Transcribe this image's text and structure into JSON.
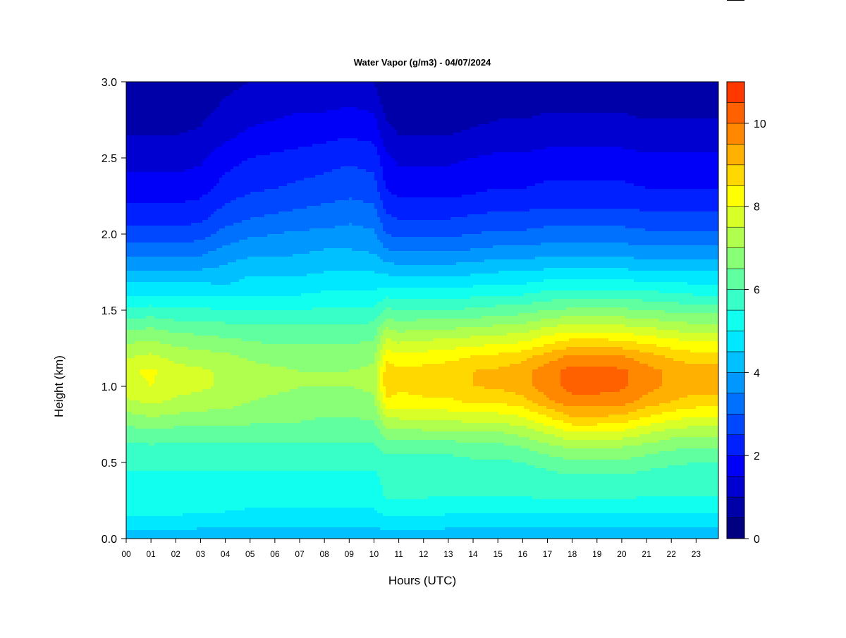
{
  "chart_data": {
    "type": "heatmap",
    "title": "Water Vapor (g/m3) - 04/07/2024",
    "xlabel": "Hours (UTC)",
    "ylabel": "Height (km)",
    "x_ticks": [
      "00",
      "01",
      "02",
      "03",
      "04",
      "05",
      "06",
      "07",
      "08",
      "09",
      "10",
      "11",
      "12",
      "13",
      "14",
      "15",
      "16",
      "17",
      "18",
      "19",
      "20",
      "21",
      "22",
      "23"
    ],
    "x_range": [
      0,
      23.9
    ],
    "y_ticks": [
      "0.0",
      "0.5",
      "1.0",
      "1.5",
      "2.0",
      "2.5",
      "3.0"
    ],
    "y_range": [
      0,
      3.0
    ],
    "colorbar": {
      "range": [
        0,
        11
      ],
      "ticks": [
        "0",
        "2",
        "4",
        "6",
        "8",
        "10"
      ],
      "step": 0.5,
      "colors": [
        "#000080",
        "#0000a8",
        "#0000d0",
        "#0000f8",
        "#0020ff",
        "#0048ff",
        "#0070ff",
        "#0098ff",
        "#00c0ff",
        "#00e8ff",
        "#10ffef",
        "#38ffc7",
        "#60ff9f",
        "#88ff77",
        "#b0ff4f",
        "#d8ff27",
        "#ffff00",
        "#ffd800",
        "#ffb000",
        "#ff8800",
        "#ff6000",
        "#ff3800",
        "#ff1000",
        "#e80000",
        "#c00000",
        "#980000"
      ]
    },
    "profile": {
      "heights_km": [
        0.0,
        0.1,
        0.2,
        0.3,
        0.4,
        0.5,
        0.6,
        0.7,
        0.8,
        0.9,
        1.0,
        1.1,
        1.2,
        1.3,
        1.4,
        1.5,
        1.6,
        1.7,
        1.8,
        1.9,
        2.0,
        2.1,
        2.2,
        2.3,
        2.4,
        2.5,
        2.6,
        2.7,
        2.8,
        2.9,
        3.0
      ],
      "times_utc": [
        0,
        1,
        2,
        3,
        4,
        5,
        6,
        7,
        8,
        9,
        10,
        10.5,
        11,
        12,
        13,
        14,
        15,
        16,
        17,
        18,
        19,
        20,
        21,
        22,
        23,
        23.9
      ],
      "values_g_m3": [
        [
          4.2,
          4.8,
          5.2,
          5.5,
          5.4,
          5.6,
          5.9,
          6.3,
          6.8,
          7.4,
          7.8,
          7.9,
          7.4,
          6.9,
          6.3,
          5.6,
          5.0,
          4.4,
          3.8,
          3.2,
          2.7,
          2.3,
          2.0,
          1.7,
          1.5,
          1.3,
          1.1,
          0.9,
          0.8,
          0.7,
          0.6
        ],
        [
          4.2,
          4.8,
          5.2,
          5.5,
          5.4,
          5.6,
          5.9,
          6.4,
          7.0,
          7.6,
          8.0,
          8.1,
          7.6,
          7.0,
          6.4,
          5.7,
          5.0,
          4.4,
          3.8,
          3.2,
          2.7,
          2.3,
          2.0,
          1.7,
          1.5,
          1.3,
          1.1,
          0.9,
          0.8,
          0.7,
          0.6
        ],
        [
          4.2,
          4.8,
          5.2,
          5.5,
          5.4,
          5.6,
          5.9,
          6.3,
          6.9,
          7.4,
          7.7,
          7.7,
          7.3,
          6.8,
          6.2,
          5.6,
          5.0,
          4.4,
          3.8,
          3.2,
          2.7,
          2.3,
          2.0,
          1.7,
          1.5,
          1.3,
          1.1,
          0.9,
          0.8,
          0.7,
          0.6
        ],
        [
          4.1,
          4.7,
          5.1,
          5.4,
          5.4,
          5.6,
          5.9,
          6.3,
          6.8,
          7.3,
          7.6,
          7.6,
          7.2,
          6.7,
          6.2,
          5.6,
          5.0,
          4.4,
          3.8,
          3.3,
          2.8,
          2.4,
          2.1,
          1.8,
          1.6,
          1.4,
          1.2,
          1.0,
          0.9,
          0.8,
          0.7
        ],
        [
          4.1,
          4.7,
          5.1,
          5.4,
          5.4,
          5.6,
          5.9,
          6.3,
          6.8,
          7.2,
          7.4,
          7.4,
          7.1,
          6.6,
          6.1,
          5.5,
          4.9,
          4.3,
          4.0,
          3.6,
          3.2,
          2.8,
          2.5,
          2.2,
          2.0,
          1.8,
          1.5,
          1.3,
          1.1,
          1.0,
          0.9
        ],
        [
          4.1,
          4.6,
          5.0,
          5.3,
          5.4,
          5.6,
          5.9,
          6.3,
          6.7,
          7.0,
          7.2,
          7.2,
          6.9,
          6.5,
          6.0,
          5.5,
          5.0,
          4.6,
          4.2,
          3.8,
          3.4,
          3.0,
          2.7,
          2.4,
          2.2,
          2.0,
          1.7,
          1.5,
          1.3,
          1.1,
          1.0
        ],
        [
          4.1,
          4.6,
          5.0,
          5.3,
          5.4,
          5.6,
          5.9,
          6.3,
          6.6,
          6.9,
          7.1,
          7.1,
          6.8,
          6.4,
          6.0,
          5.5,
          5.0,
          4.6,
          4.2,
          3.8,
          3.5,
          3.1,
          2.8,
          2.5,
          2.3,
          2.1,
          1.8,
          1.6,
          1.4,
          1.2,
          1.0
        ],
        [
          4.1,
          4.6,
          5.0,
          5.3,
          5.4,
          5.6,
          5.9,
          6.3,
          6.6,
          6.9,
          7.0,
          7.0,
          6.8,
          6.4,
          6.0,
          5.5,
          5.0,
          4.6,
          4.2,
          3.9,
          3.6,
          3.2,
          2.9,
          2.6,
          2.4,
          2.2,
          1.9,
          1.7,
          1.5,
          1.3,
          1.1
        ],
        [
          4.1,
          4.6,
          5.0,
          5.3,
          5.4,
          5.6,
          5.9,
          6.2,
          6.5,
          6.8,
          7.0,
          7.0,
          6.8,
          6.4,
          6.0,
          5.6,
          5.1,
          4.7,
          4.3,
          4.0,
          3.6,
          3.3,
          3.0,
          2.7,
          2.5,
          2.3,
          2.0,
          1.8,
          1.5,
          1.3,
          1.1
        ],
        [
          4.1,
          4.6,
          5.0,
          5.3,
          5.4,
          5.6,
          5.9,
          6.2,
          6.5,
          6.8,
          7.0,
          7.0,
          6.8,
          6.4,
          6.0,
          5.6,
          5.1,
          4.7,
          4.3,
          4.0,
          3.7,
          3.4,
          3.1,
          2.8,
          2.6,
          2.4,
          2.1,
          1.8,
          1.6,
          1.3,
          1.1
        ],
        [
          4.1,
          4.6,
          5.0,
          5.3,
          5.4,
          5.6,
          5.9,
          6.2,
          6.6,
          6.9,
          7.1,
          7.1,
          6.9,
          6.5,
          6.1,
          5.6,
          5.1,
          4.7,
          4.3,
          3.9,
          3.6,
          3.3,
          3.0,
          2.7,
          2.5,
          2.3,
          2.0,
          1.7,
          1.5,
          1.2,
          1.0
        ],
        [
          4.2,
          4.8,
          5.3,
          5.6,
          5.6,
          5.8,
          6.2,
          6.8,
          7.6,
          8.4,
          8.8,
          8.8,
          8.3,
          7.6,
          6.9,
          6.1,
          5.4,
          4.7,
          4.1,
          3.5,
          3.0,
          2.6,
          2.3,
          2.0,
          1.8,
          1.6,
          1.3,
          1.1,
          0.9,
          0.7,
          0.6
        ],
        [
          4.2,
          4.8,
          5.3,
          5.6,
          5.6,
          5.8,
          6.2,
          6.8,
          7.6,
          8.3,
          8.6,
          8.6,
          8.1,
          7.4,
          6.7,
          6.0,
          5.3,
          4.6,
          4.0,
          3.4,
          2.9,
          2.5,
          2.1,
          1.8,
          1.6,
          1.4,
          1.1,
          0.9,
          0.7,
          0.6,
          0.5
        ],
        [
          4.2,
          4.8,
          5.3,
          5.6,
          5.6,
          5.8,
          6.2,
          6.9,
          7.7,
          8.4,
          8.7,
          8.7,
          8.2,
          7.5,
          6.8,
          6.0,
          5.3,
          4.6,
          4.0,
          3.4,
          2.9,
          2.5,
          2.1,
          1.8,
          1.6,
          1.4,
          1.1,
          0.9,
          0.7,
          0.6,
          0.5
        ],
        [
          4.1,
          4.7,
          5.2,
          5.6,
          5.6,
          5.8,
          6.2,
          6.9,
          7.7,
          8.4,
          8.8,
          8.8,
          8.3,
          7.6,
          6.8,
          6.0,
          5.3,
          4.6,
          4.0,
          3.4,
          2.9,
          2.5,
          2.1,
          1.8,
          1.6,
          1.4,
          1.1,
          0.9,
          0.7,
          0.6,
          0.5
        ],
        [
          4.1,
          4.7,
          5.2,
          5.6,
          5.6,
          5.9,
          6.3,
          7.0,
          7.8,
          8.6,
          9.0,
          9.0,
          8.5,
          7.7,
          6.9,
          6.1,
          5.4,
          4.7,
          4.1,
          3.5,
          3.0,
          2.6,
          2.2,
          1.9,
          1.7,
          1.5,
          1.2,
          1.0,
          0.8,
          0.6,
          0.5
        ],
        [
          4.1,
          4.7,
          5.2,
          5.6,
          5.6,
          5.9,
          6.3,
          7.0,
          7.8,
          8.6,
          9.1,
          9.1,
          8.6,
          7.8,
          7.0,
          6.2,
          5.5,
          4.8,
          4.2,
          3.6,
          3.1,
          2.7,
          2.3,
          2.0,
          1.8,
          1.6,
          1.3,
          1.1,
          0.9,
          0.7,
          0.6
        ],
        [
          4.1,
          4.7,
          5.2,
          5.6,
          5.7,
          6.0,
          6.5,
          7.2,
          8.0,
          8.8,
          9.3,
          9.3,
          8.8,
          7.9,
          7.1,
          6.3,
          5.5,
          4.8,
          4.2,
          3.6,
          3.1,
          2.7,
          2.3,
          2.0,
          1.8,
          1.6,
          1.3,
          1.1,
          0.9,
          0.7,
          0.6
        ],
        [
          4.1,
          4.7,
          5.2,
          5.7,
          5.8,
          6.2,
          6.8,
          7.6,
          8.5,
          9.4,
          9.8,
          9.8,
          9.2,
          8.3,
          7.4,
          6.5,
          5.7,
          5.0,
          4.3,
          3.7,
          3.2,
          2.8,
          2.4,
          2.1,
          1.9,
          1.7,
          1.4,
          1.2,
          1.0,
          0.8,
          0.7
        ],
        [
          4.1,
          4.7,
          5.2,
          5.7,
          5.9,
          6.4,
          7.1,
          8.0,
          9.0,
          9.8,
          10.2,
          10.2,
          9.6,
          8.6,
          7.6,
          6.6,
          5.8,
          5.0,
          4.3,
          3.7,
          3.2,
          2.8,
          2.4,
          2.1,
          1.9,
          1.7,
          1.4,
          1.2,
          1.0,
          0.8,
          0.7
        ],
        [
          4.1,
          4.7,
          5.2,
          5.7,
          5.9,
          6.4,
          7.1,
          8.0,
          9.0,
          9.8,
          10.2,
          10.2,
          9.6,
          8.6,
          7.6,
          6.6,
          5.8,
          5.0,
          4.3,
          3.7,
          3.2,
          2.8,
          2.4,
          2.1,
          1.9,
          1.7,
          1.4,
          1.2,
          1.0,
          0.8,
          0.7
        ],
        [
          4.1,
          4.7,
          5.2,
          5.7,
          5.9,
          6.4,
          7.0,
          7.9,
          8.9,
          9.7,
          10.1,
          10.1,
          9.5,
          8.5,
          7.5,
          6.6,
          5.8,
          5.0,
          4.3,
          3.7,
          3.2,
          2.8,
          2.4,
          2.1,
          1.9,
          1.7,
          1.4,
          1.2,
          1.0,
          0.8,
          0.7
        ],
        [
          4.1,
          4.7,
          5.2,
          5.6,
          5.8,
          6.2,
          6.8,
          7.6,
          8.5,
          9.3,
          9.7,
          9.7,
          9.2,
          8.3,
          7.4,
          6.5,
          5.7,
          4.9,
          4.2,
          3.6,
          3.1,
          2.7,
          2.3,
          2.0,
          1.8,
          1.6,
          1.3,
          1.1,
          0.9,
          0.7,
          0.6
        ],
        [
          4.1,
          4.7,
          5.2,
          5.6,
          5.7,
          6.1,
          6.6,
          7.3,
          8.2,
          9.0,
          9.4,
          9.4,
          8.9,
          8.1,
          7.2,
          6.4,
          5.6,
          4.9,
          4.2,
          3.6,
          3.1,
          2.7,
          2.3,
          2.0,
          1.8,
          1.6,
          1.3,
          1.1,
          0.9,
          0.7,
          0.6
        ],
        [
          4.1,
          4.7,
          5.2,
          5.6,
          5.7,
          6.0,
          6.5,
          7.2,
          8.0,
          8.8,
          9.2,
          9.2,
          8.7,
          7.9,
          7.1,
          6.3,
          5.5,
          4.8,
          4.2,
          3.6,
          3.1,
          2.7,
          2.3,
          2.0,
          1.8,
          1.6,
          1.3,
          1.1,
          0.9,
          0.7,
          0.6
        ],
        [
          4.1,
          4.7,
          5.2,
          5.6,
          5.7,
          6.0,
          6.5,
          7.2,
          8.0,
          8.8,
          9.2,
          9.2,
          8.7,
          7.9,
          7.1,
          6.3,
          5.5,
          4.8,
          4.2,
          3.6,
          3.1,
          2.7,
          2.3,
          2.0,
          1.8,
          1.6,
          1.3,
          1.1,
          0.9,
          0.7,
          0.6
        ]
      ]
    },
    "grid": false,
    "legend": "colorbar-right"
  }
}
